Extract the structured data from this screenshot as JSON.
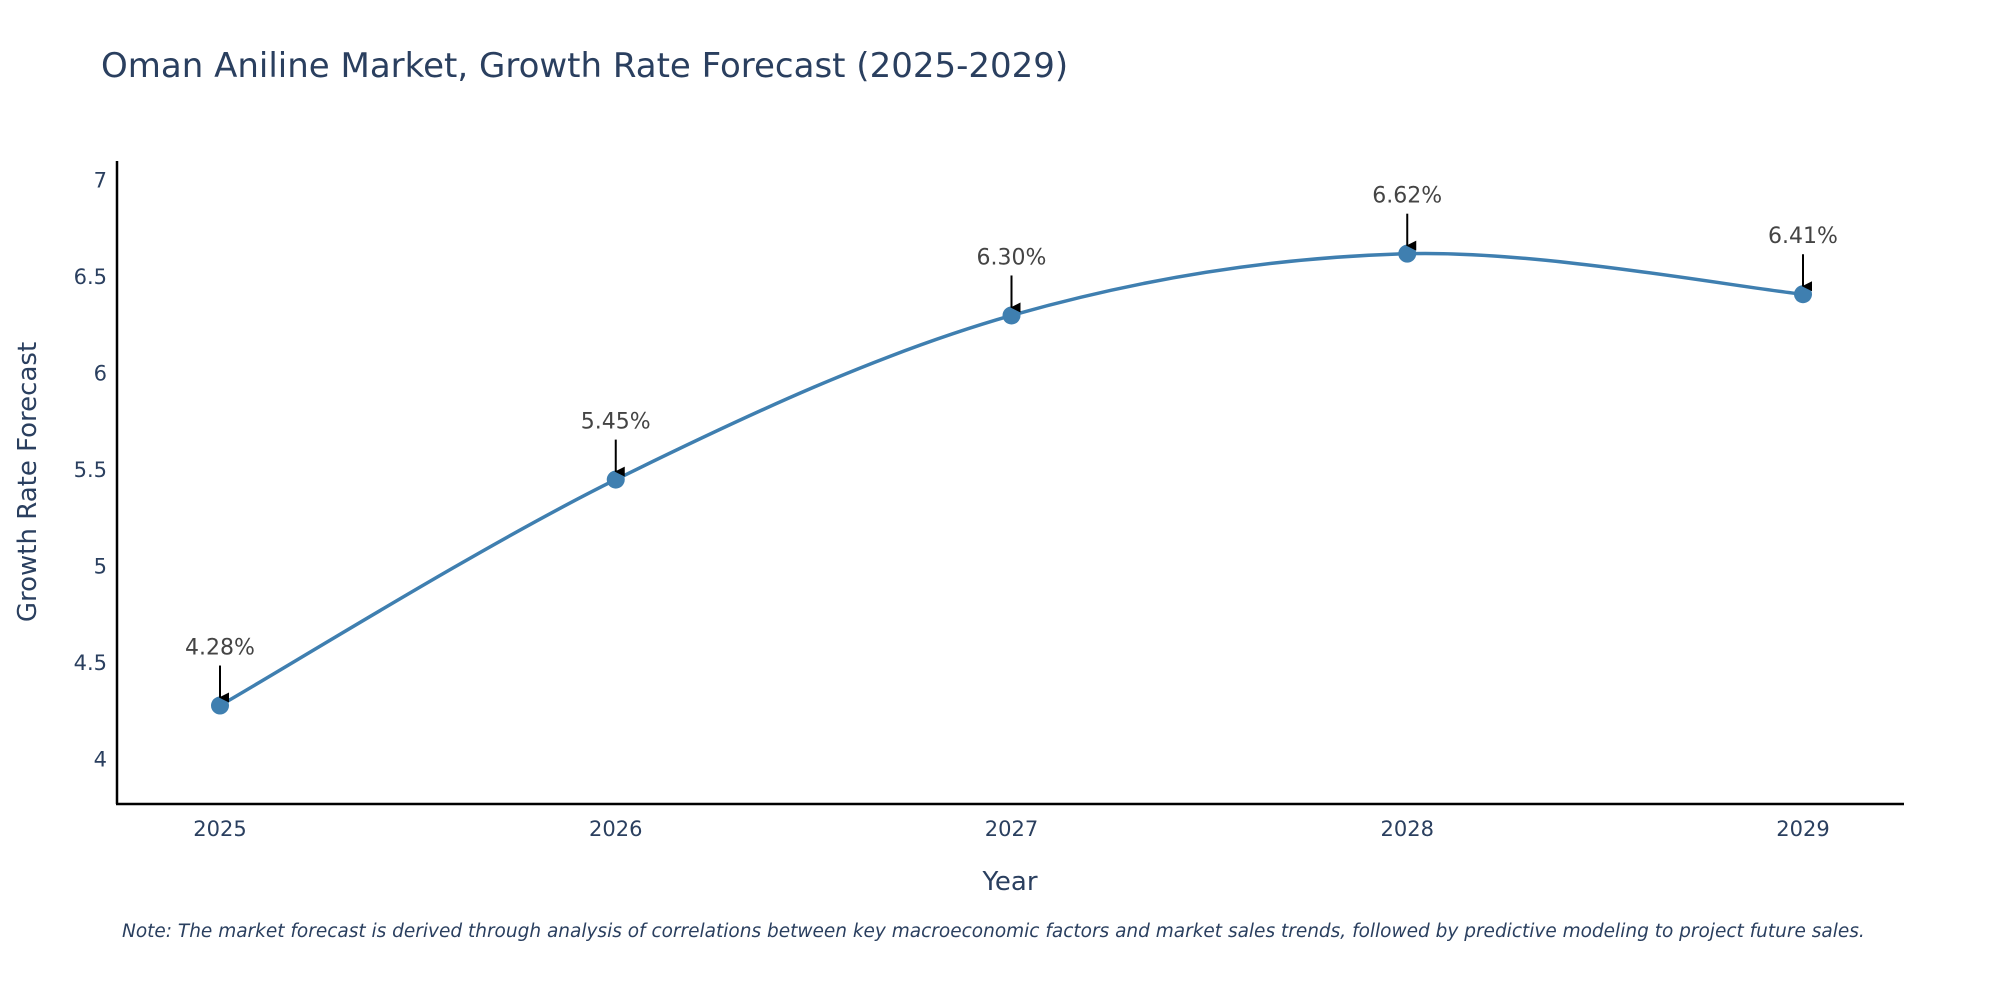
{
  "chart_data": {
    "type": "line",
    "title": "Oman Aniline Market, Growth Rate Forecast (2025-2029)",
    "xlabel": "Year",
    "ylabel": "Growth Rate Forecast",
    "categories": [
      "2025",
      "2026",
      "2027",
      "2028",
      "2029"
    ],
    "series": [
      {
        "name": "Growth Rate Forecast",
        "values": [
          4.28,
          5.45,
          6.3,
          6.62,
          6.41
        ],
        "labels": [
          "4.28%",
          "5.45%",
          "6.30%",
          "6.62%",
          "6.41%"
        ]
      }
    ],
    "ylim": [
      3.77,
      7.1
    ],
    "yticks": [
      4,
      4.5,
      5,
      5.5,
      6,
      6.5,
      7
    ],
    "ytick_labels": [
      "4",
      "4.5",
      "5",
      "5.5",
      "6",
      "6.5",
      "7"
    ],
    "line_shape": "spline",
    "grid": false,
    "line_color": "#3f7fb0",
    "marker_color": "#3f7fb0",
    "arrow_color": "#000000"
  },
  "note": "Note: The market forecast is derived through analysis of correlations between key macroeconomic factors and market sales trends, followed by predictive modeling to project future sales."
}
